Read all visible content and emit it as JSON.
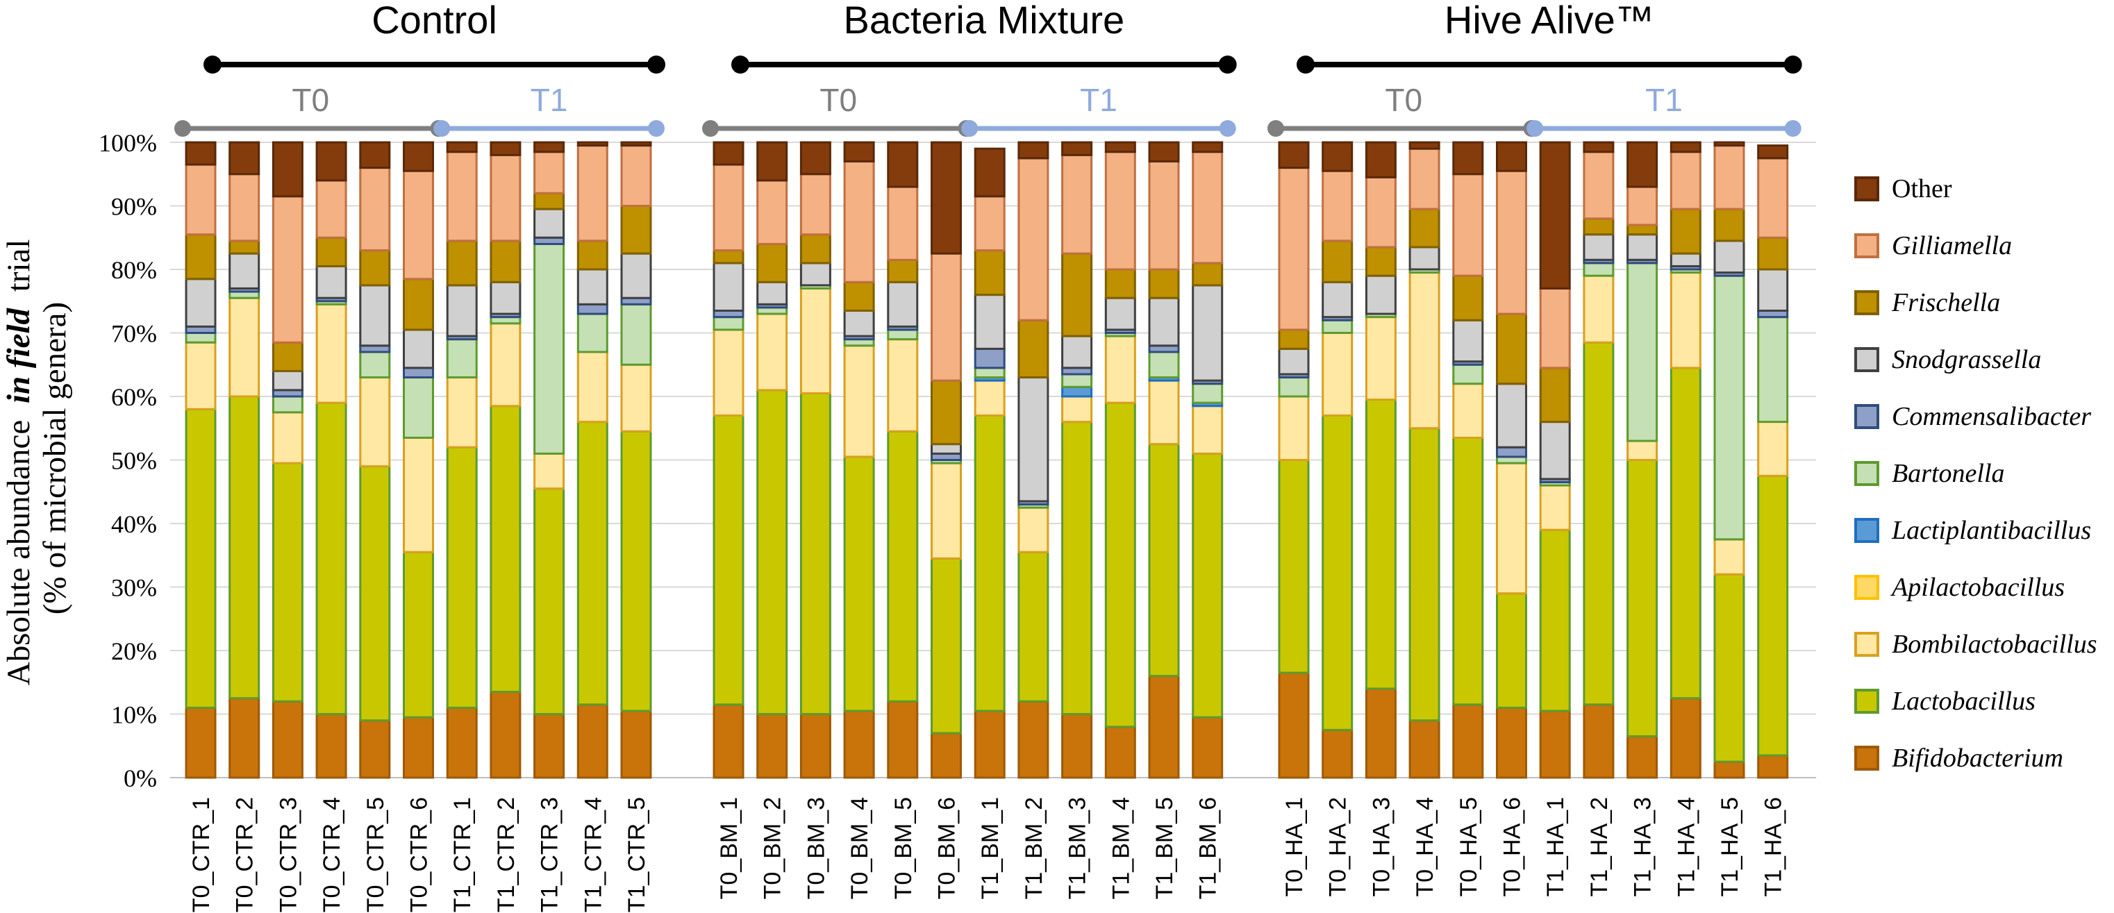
{
  "chart_data": {
    "type": "stacked-bar",
    "ylabel_lines": [
      "Absolute abundance",
      "in field",
      "trial",
      "(% of microbial genera)"
    ],
    "ylim": [
      0,
      100
    ],
    "yticks": [
      "0%",
      "10%",
      "20%",
      "30%",
      "40%",
      "50%",
      "60%",
      "70%",
      "80%",
      "90%",
      "100%"
    ],
    "grid": true,
    "legend_position": "right",
    "legend_title_other": "Other",
    "series": [
      {
        "name": "Bifidobacterium",
        "italic": true,
        "color": "#C8740A",
        "edge": "#9E5A06"
      },
      {
        "name": "Lactobacillus",
        "italic": true,
        "color": "#C9C800",
        "edge": "#5E9A2E"
      },
      {
        "name": "Bombilactobacillus",
        "italic": true,
        "color": "#FFE8A3",
        "edge": "#D9A020"
      },
      {
        "name": "Apilactobacillus",
        "italic": true,
        "color": "#FFD966",
        "edge": "#FFC000"
      },
      {
        "name": "Lactiplantibacillus",
        "italic": true,
        "color": "#5B9BD5",
        "edge": "#1F6FC0"
      },
      {
        "name": "Bartonella",
        "italic": true,
        "color": "#C5E0B4",
        "edge": "#5E9A2E"
      },
      {
        "name": "Commensalibacter",
        "italic": true,
        "color": "#8EA0C8",
        "edge": "#2F4C7C"
      },
      {
        "name": "Snodgrassella",
        "italic": true,
        "color": "#D0D0D0",
        "edge": "#404040"
      },
      {
        "name": "Frischella",
        "italic": true,
        "color": "#BF9000",
        "edge": "#7F6000"
      },
      {
        "name": "Gilliamella",
        "italic": true,
        "color": "#F4B183",
        "edge": "#C07040"
      },
      {
        "name": "Other",
        "italic": false,
        "color": "#843C0C",
        "edge": "#5A2808"
      }
    ],
    "groups": [
      {
        "title": "Control",
        "t0_label": "T0",
        "t1_label": "T1",
        "t0_count": 6,
        "t1_count": 5
      },
      {
        "title": "Bacteria Mixture",
        "t0_label": "T0",
        "t1_label": "T1",
        "t0_count": 6,
        "t1_count": 6
      },
      {
        "title": "Hive Alive™",
        "t0_label": "T0",
        "t1_label": "T1",
        "t0_count": 6,
        "t1_count": 6
      }
    ],
    "samples": [
      {
        "name": "T0_CTR_1",
        "values": [
          11,
          47,
          10.5,
          0,
          0,
          1.5,
          1,
          7.5,
          7,
          11,
          3.5
        ]
      },
      {
        "name": "T0_CTR_2",
        "values": [
          12.5,
          47.5,
          15.5,
          0,
          0,
          1,
          0.5,
          5.5,
          2,
          10.5,
          5
        ]
      },
      {
        "name": "T0_CTR_3",
        "values": [
          12,
          37.5,
          8,
          0,
          0,
          2.5,
          1,
          3,
          4.5,
          23,
          8.5
        ]
      },
      {
        "name": "T0_CTR_4",
        "values": [
          10,
          49,
          15.5,
          0,
          0,
          0.5,
          0.5,
          5,
          4.5,
          9,
          6
        ]
      },
      {
        "name": "T0_CTR_5",
        "values": [
          9,
          40,
          14,
          0,
          0,
          4,
          1,
          9.5,
          5.5,
          13,
          4
        ]
      },
      {
        "name": "T0_CTR_6",
        "values": [
          9.5,
          26,
          18,
          0,
          0,
          9.5,
          1.5,
          6,
          8,
          17,
          4.5
        ]
      },
      {
        "name": "T1_CTR_1",
        "values": [
          11,
          41,
          11,
          0,
          0,
          6,
          0.5,
          8,
          7,
          14,
          1.5
        ]
      },
      {
        "name": "T1_CTR_2",
        "values": [
          13.5,
          45,
          13,
          0,
          0,
          1,
          0.5,
          5,
          6.5,
          13.5,
          2
        ]
      },
      {
        "name": "T1_CTR_3",
        "values": [
          10,
          35.5,
          5.5,
          0,
          0,
          33,
          1,
          4.5,
          2.5,
          6.5,
          1.5
        ]
      },
      {
        "name": "T1_CTR_4",
        "values": [
          11.5,
          44.5,
          11,
          0,
          0,
          6,
          1.5,
          5.5,
          4.5,
          15,
          0.5
        ]
      },
      {
        "name": "T1_CTR_5",
        "values": [
          10.5,
          44,
          10.5,
          0,
          0,
          9.5,
          1,
          7,
          7.5,
          9.5,
          0.5
        ]
      },
      {
        "name": "T0_BM_1",
        "values": [
          11.5,
          45.5,
          13.5,
          0,
          0,
          2,
          1,
          7.5,
          2,
          13.5,
          3.5
        ]
      },
      {
        "name": "T0_BM_2",
        "values": [
          10,
          51,
          12,
          0,
          0,
          1,
          0.5,
          3.5,
          6,
          10,
          6
        ]
      },
      {
        "name": "T0_BM_3",
        "values": [
          10,
          50.5,
          16.5,
          0,
          0,
          0.5,
          0,
          3.5,
          4.5,
          9.5,
          5
        ]
      },
      {
        "name": "T0_BM_4",
        "values": [
          10.5,
          40,
          17.5,
          0,
          0,
          1,
          0.5,
          4,
          4.5,
          19,
          3
        ]
      },
      {
        "name": "T0_BM_5",
        "values": [
          12,
          42.5,
          14.5,
          0,
          0,
          1.5,
          0.5,
          7,
          3.5,
          11.5,
          7
        ]
      },
      {
        "name": "T0_BM_6",
        "values": [
          7,
          27.5,
          15,
          0,
          0,
          0.5,
          1,
          1.5,
          10,
          20,
          17.5
        ]
      },
      {
        "name": "T1_BM_1",
        "values": [
          10.5,
          46.5,
          5.5,
          0,
          0.5,
          1.5,
          3,
          8.5,
          7,
          8.5,
          7.5
        ]
      },
      {
        "name": "T1_BM_2",
        "values": [
          12,
          23.5,
          7,
          0,
          0,
          0.5,
          0.5,
          19.5,
          9,
          25.5,
          2.5
        ]
      },
      {
        "name": "T1_BM_3",
        "values": [
          10,
          46,
          4,
          0,
          1.5,
          2,
          1,
          5,
          13,
          15.5,
          2
        ]
      },
      {
        "name": "T1_BM_4",
        "values": [
          8,
          51,
          10.5,
          0,
          0,
          0.5,
          0.5,
          5,
          4.5,
          18.5,
          1.5
        ]
      },
      {
        "name": "T1_BM_5",
        "values": [
          16,
          36.5,
          10,
          0,
          0.5,
          4,
          1,
          7.5,
          4.5,
          17,
          3
        ]
      },
      {
        "name": "T1_BM_6",
        "values": [
          9.5,
          41.5,
          7.5,
          0,
          0.5,
          3,
          0.5,
          15,
          3.5,
          17.5,
          1.5
        ]
      },
      {
        "name": "T0_HA_1",
        "values": [
          16.5,
          33.5,
          10,
          0,
          0,
          3,
          0.5,
          4,
          3,
          25.5,
          4
        ]
      },
      {
        "name": "T0_HA_2",
        "values": [
          7.5,
          49.5,
          13,
          0,
          0,
          2,
          0.5,
          5.5,
          6.5,
          11,
          4.5
        ]
      },
      {
        "name": "T0_HA_3",
        "values": [
          14,
          45.5,
          13,
          0,
          0,
          0.5,
          0,
          6,
          4.5,
          11,
          5.5
        ]
      },
      {
        "name": "T0_HA_4",
        "values": [
          9,
          46,
          24.5,
          0,
          0,
          0.5,
          0,
          3.5,
          6,
          9.5,
          1
        ]
      },
      {
        "name": "T0_HA_5",
        "values": [
          11.5,
          42,
          8.5,
          0,
          0,
          3,
          0.5,
          6.5,
          7,
          16,
          5
        ]
      },
      {
        "name": "T0_HA_6",
        "values": [
          11,
          18,
          20.5,
          0,
          0,
          1,
          1.5,
          10,
          11,
          22.5,
          4.5
        ]
      },
      {
        "name": "T1_HA_1",
        "values": [
          10.5,
          28.5,
          7,
          0,
          0,
          0.5,
          0.5,
          9,
          8.5,
          12.5,
          23
        ]
      },
      {
        "name": "T1_HA_2",
        "values": [
          11.5,
          57,
          10.5,
          0,
          0,
          2,
          0.5,
          4,
          2.5,
          10.5,
          1.5
        ]
      },
      {
        "name": "T1_HA_3",
        "values": [
          6.5,
          43.5,
          3,
          0,
          0,
          28,
          0.5,
          4,
          1.5,
          6,
          7
        ]
      },
      {
        "name": "T1_HA_4",
        "values": [
          12.5,
          52,
          15,
          0,
          0,
          0.5,
          0.5,
          2,
          7,
          9,
          1.5
        ]
      },
      {
        "name": "T1_HA_5",
        "values": [
          2.5,
          29.5,
          5.5,
          0,
          0,
          41.5,
          0.5,
          5,
          5,
          10,
          0.5
        ]
      },
      {
        "name": "T1_HA_6",
        "values": [
          3.5,
          44,
          8.5,
          0,
          0,
          16.5,
          1,
          6.5,
          5,
          12.5,
          2
        ]
      }
    ]
  }
}
